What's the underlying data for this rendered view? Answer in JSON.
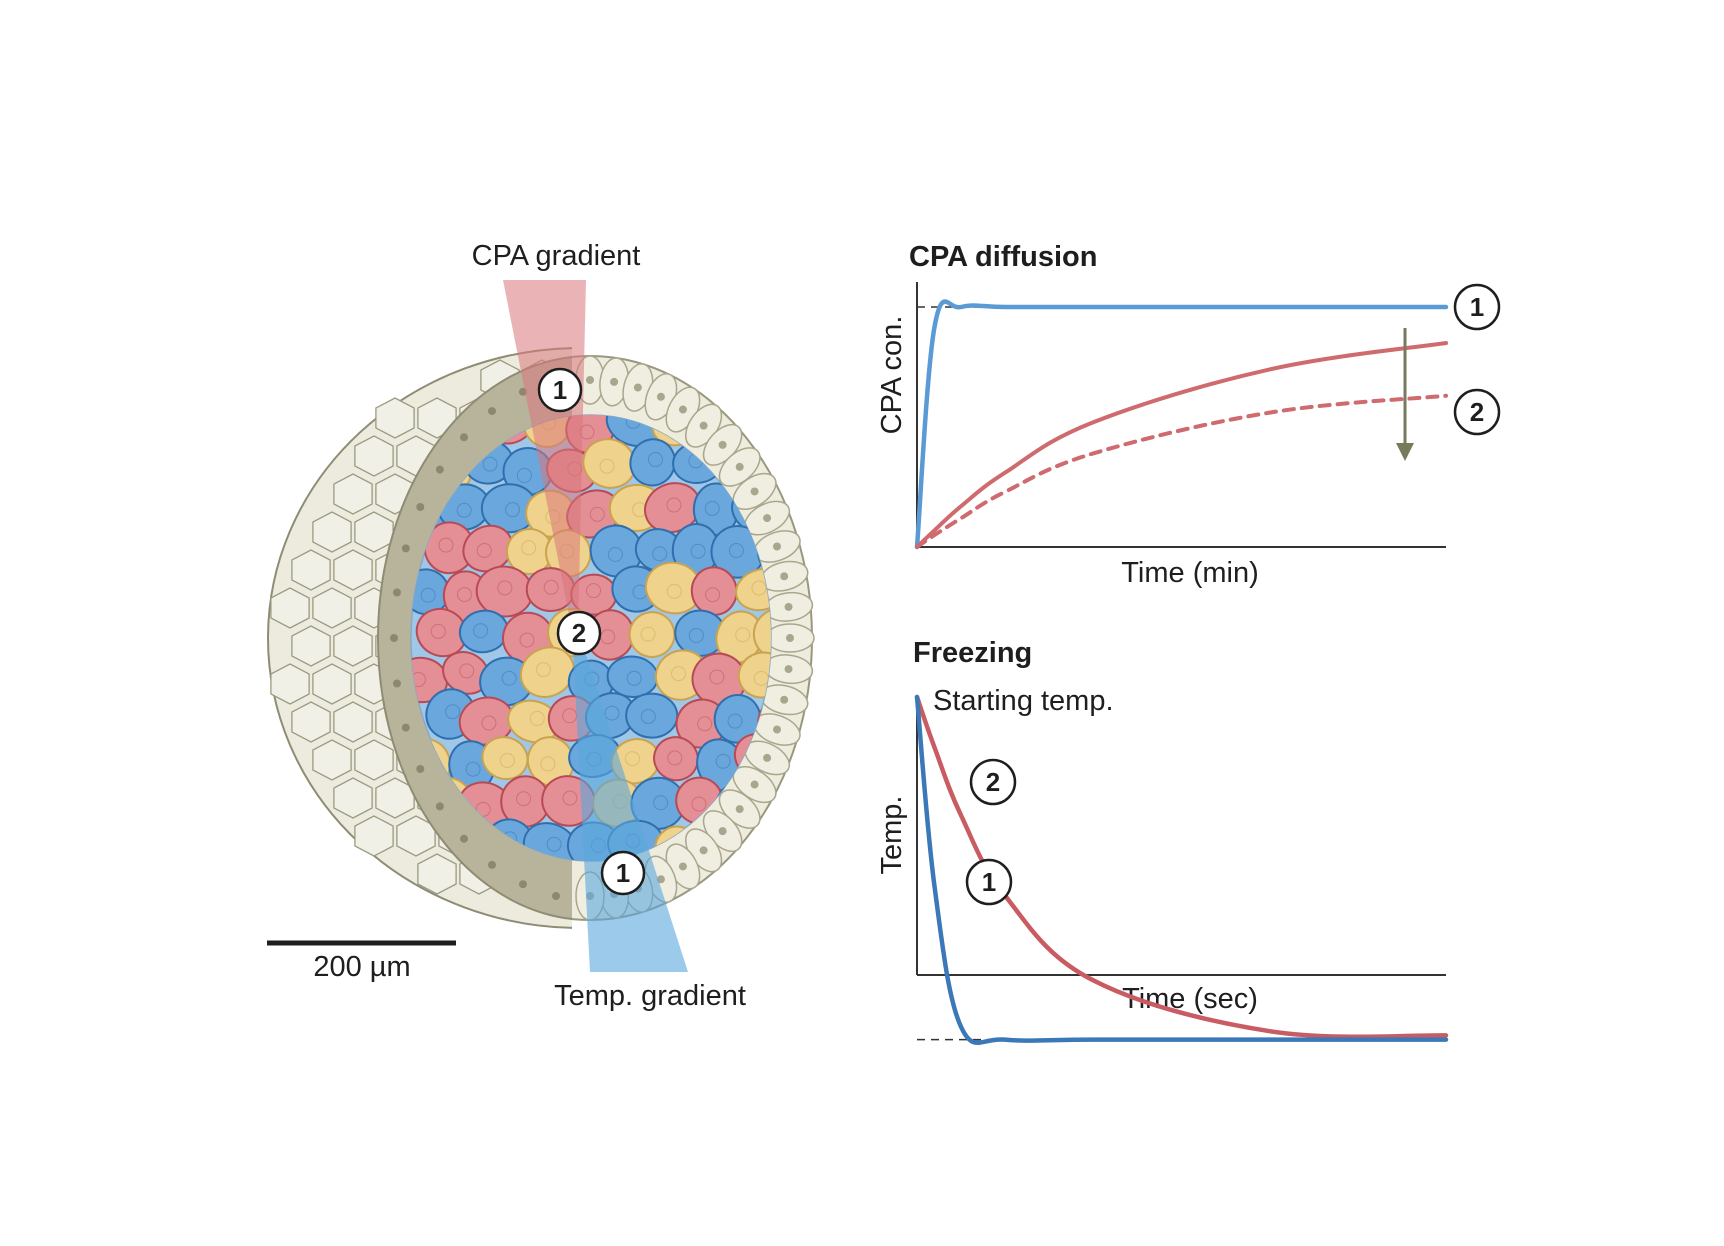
{
  "left": {
    "cpa_gradient_label": "CPA gradient",
    "temp_gradient_label": "Temp. gradient",
    "scale_bar_label": "200 µm",
    "markers": {
      "outer_top": "1",
      "center": "2",
      "outer_bottom": "1"
    },
    "colors": {
      "cpa_gradient": "#d9777c",
      "temp_gradient": "#5aa6dc",
      "cell_blue": "#6aa7dc",
      "cell_red": "#e48f96",
      "cell_yellow": "#efd28c",
      "outer_layer": "#e9e7d6",
      "inner_layer": "#b7b39c"
    }
  },
  "chart_data": [
    {
      "type": "line",
      "title": "CPA diffusion",
      "xlabel": "Time (min)",
      "ylabel": "CPA con.",
      "x": [
        0,
        2,
        5,
        10,
        20,
        40,
        60
      ],
      "ylim": [
        0,
        1
      ],
      "reference_line": {
        "y": 1.0,
        "style": "dashed"
      },
      "series": [
        {
          "marker": "1",
          "color": "#5b9bd5",
          "style": "solid",
          "values": [
            0,
            0.92,
            1.0,
            1.0,
            1.0,
            1.0,
            1.0
          ]
        },
        {
          "color": "#cf6a6e",
          "style": "solid",
          "values": [
            0,
            0.07,
            0.17,
            0.31,
            0.52,
            0.74,
            0.85
          ]
        },
        {
          "marker": "2",
          "color": "#cf6a6e",
          "style": "dashed",
          "values": [
            0,
            0.05,
            0.12,
            0.23,
            0.39,
            0.56,
            0.63
          ]
        }
      ],
      "annotation": {
        "type": "arrow-down",
        "color": "#787a5c"
      }
    },
    {
      "type": "line",
      "title": "Freezing",
      "xlabel": "Time (sec)",
      "ylabel": "Temp.",
      "annotation_text": "Starting temp.",
      "x": [
        0,
        2,
        5,
        10,
        20,
        40,
        60
      ],
      "ylim": [
        0,
        1
      ],
      "reference_line": {
        "y": 0.19,
        "style": "dashed"
      },
      "series": [
        {
          "marker": "1",
          "color": "#3b78b8",
          "style": "solid",
          "values": [
            1.0,
            0.55,
            0.22,
            0.19,
            0.19,
            0.19,
            0.19
          ]
        },
        {
          "marker": "2",
          "color": "#c85c62",
          "style": "solid",
          "values": [
            1.0,
            0.88,
            0.72,
            0.53,
            0.33,
            0.21,
            0.2
          ]
        }
      ]
    }
  ]
}
